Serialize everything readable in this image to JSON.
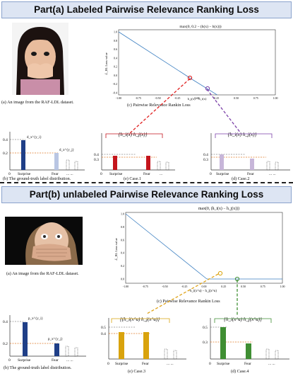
{
  "part_a": {
    "title": "Part(a) Labeled Pairwise Relevance Ranking Loss",
    "image_caption": "(a) An image from the RAF-LDL dataset.",
    "dist_caption": "(b)  The ground-truth label distribution.",
    "plot_caption": "(c) Pairwise  Relevance  Rankin  Loss",
    "case1_caption": "(e) Case.1",
    "case2_caption": "(d) Case.2",
    "plot_title": "max(0, 0.2 − (h(x) − h(x)))",
    "plot_ylabel": "ℒ_RL Loss value",
    "plot_xlabel": "h_j(x) − h_i(x)",
    "case_label": "{h_i(x)   h_j(x)}",
    "dist_labels": {
      "d1": "d_x^{y_i}",
      "d2": "d_x^{y_j}"
    }
  },
  "part_b": {
    "title": "Part(b) unlabeled Pairwise Relevance Ranking Loss",
    "image_caption": "(a) An image from the RAF-LDL dataset.",
    "dist_caption": "(b)  The ground-truth label distribution.",
    "plot_caption": "(c) Pairwise Relevance Rankin Loss",
    "case3_caption": "(e) Case.3",
    "case4_caption": "(d) Case.4",
    "plot_title": "max(0,    (h_i(x) − h_j(x)))",
    "plot_ylabel": "ℒ_RL Loss value",
    "plot_xlabel": "h_i(x^u) − h_j(x^u)",
    "case_label": "{(h_i(x^u)  h_j(x^u)}",
    "case4_label": "{h_i(x^u)  h_j(x^u)}",
    "dist_labels": {
      "p1": "p_x^{y_i}",
      "p2": "p_x^{y_j}"
    }
  },
  "axis": {
    "zero": "0",
    "surprise": "Surprise",
    "fear": "Fear",
    "dots": "...",
    "dots2": "... ..."
  },
  "ticks_a": {
    "y1": "0.4",
    "y2": "0.2"
  },
  "ticks_case1": {
    "y1": "0.4",
    "y2": "0.3"
  },
  "ticks_case2": {
    "y1": "0.4",
    "y2": "0.3"
  },
  "ticks_b": {
    "y1": "0.4",
    "y2": "0.2"
  },
  "ticks_case3": {
    "y1": "0.5",
    "y2": "0.4"
  },
  "ticks_case4": {
    "y1": "0.5",
    "y2": "0.3"
  },
  "plot_a": {
    "yticks": [
      "1.0",
      "0.8",
      "0.6",
      "0.4",
      "0.2",
      "0.0",
      "-0.2",
      "-0.4"
    ],
    "xticks": [
      "-1.00",
      "-0.75",
      "-0.50",
      "-0.25",
      "0.00",
      "0.25",
      "0.50",
      "0.75",
      "1.00"
    ]
  },
  "plot_b": {
    "yticks": [
      "1.0",
      "0.8",
      "0.6",
      "0.4",
      "0.2",
      "0.0"
    ],
    "xticks": [
      "-1.00",
      "-0.75",
      "-0.50",
      "-0.25",
      "0.00",
      "0.25",
      "0.50",
      "0.75",
      "1.00"
    ]
  },
  "colors": {
    "banner_bg": "#dde5f3",
    "navy": "#1f3f87",
    "lightblue": "#b9c6e3",
    "red": "#c4151c",
    "lavender": "#c7b6d9",
    "gold": "#d9a30d",
    "green": "#3f8e33",
    "line": "#3a7ec0",
    "orange": "#e07b2a"
  }
}
